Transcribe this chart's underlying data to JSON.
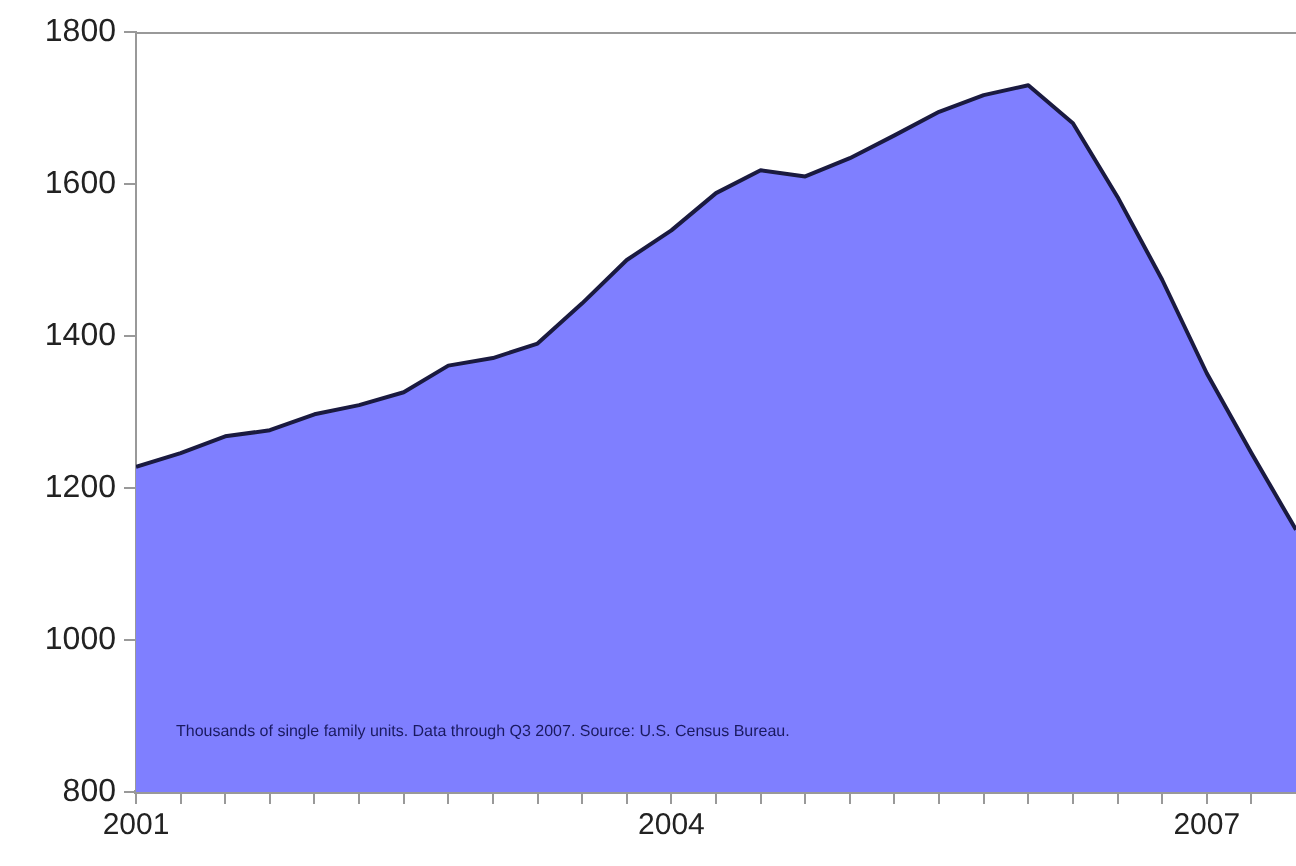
{
  "chart_data": {
    "type": "area",
    "x": [
      2001,
      2001.25,
      2001.5,
      2001.75,
      2002,
      2002.25,
      2002.5,
      2002.75,
      2003,
      2003.25,
      2003.5,
      2003.75,
      2004,
      2004.25,
      2004.5,
      2004.75,
      2005,
      2005.25,
      2005.5,
      2005.75,
      2006,
      2006.25,
      2006.5,
      2006.75,
      2007,
      2007.25,
      2007.5
    ],
    "series": [
      {
        "color": "#7f7fff",
        "values": [
          1228,
          1246,
          1268,
          1276,
          1297,
          1309,
          1326,
          1361,
          1371,
          1390,
          1443,
          1500,
          1539,
          1588,
          1618,
          1610,
          1634,
          1664,
          1695,
          1717,
          1730,
          1680,
          1583,
          1474,
          1351,
          1246,
          1145
        ]
      }
    ],
    "xlim": [
      2001,
      2007.5
    ],
    "xticks": [
      2001,
      {
        "value": 2001.25,
        "label": null
      },
      {
        "value": 2001.5,
        "label": null
      },
      {
        "value": 2001.75,
        "label": null
      },
      {
        "value": 2002,
        "label": null
      },
      {
        "value": 2002.25,
        "label": null
      },
      {
        "value": 2002.5,
        "label": null
      },
      {
        "value": 2002.75,
        "label": null
      },
      {
        "value": 2003,
        "label": null
      },
      {
        "value": 2003.25,
        "label": null
      },
      {
        "value": 2003.5,
        "label": null
      },
      {
        "value": 2003.75,
        "label": null
      },
      2004,
      {
        "value": 2004.25,
        "label": null
      },
      {
        "value": 2004.5,
        "label": null
      },
      {
        "value": 2004.75,
        "label": null
      },
      {
        "value": 2005,
        "label": null
      },
      {
        "value": 2005.25,
        "label": null
      },
      {
        "value": 2005.5,
        "label": null
      },
      {
        "value": 2005.75,
        "label": null
      },
      {
        "value": 2006,
        "label": null
      },
      {
        "value": 2006.25,
        "label": null
      },
      {
        "value": 2006.5,
        "label": null
      },
      {
        "value": 2006.75,
        "label": null
      },
      2007,
      {
        "value": 2007.25,
        "label": null
      }
    ],
    "ylim": [
      800,
      1800
    ],
    "yticks": [
      800,
      1000,
      1200,
      1400,
      1600,
      1800
    ],
    "annotations": [
      "Thousands of single family units. Data through Q3 2007. Source: U.S. Census Bureau."
    ],
    "grid": false,
    "legend": false,
    "marker": "none",
    "line_style": "solid"
  }
}
